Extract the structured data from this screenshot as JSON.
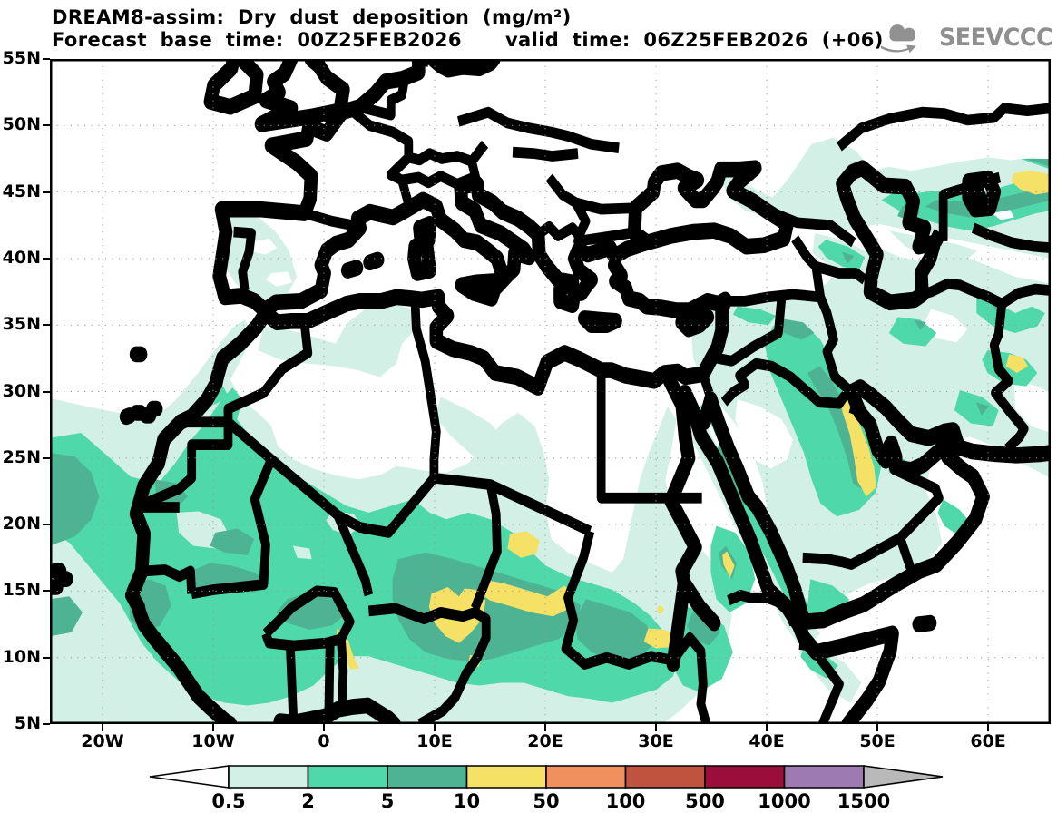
{
  "header": {
    "title": "DREAM8-assim: Dry dust deposition (mg/m²)",
    "forecast_base": "Forecast base time: 00Z25FEB2026",
    "valid_time": "valid time: 06Z25FEB2026 (+06)"
  },
  "logo": {
    "text": "SEEVCCC",
    "color": "#8f8f8f"
  },
  "map": {
    "lat_ticks": [
      {
        "label": "55N",
        "value": 55
      },
      {
        "label": "50N",
        "value": 50
      },
      {
        "label": "45N",
        "value": 45
      },
      {
        "label": "40N",
        "value": 40
      },
      {
        "label": "35N",
        "value": 35
      },
      {
        "label": "30N",
        "value": 30
      },
      {
        "label": "25N",
        "value": 25
      },
      {
        "label": "20N",
        "value": 20
      },
      {
        "label": "15N",
        "value": 15
      },
      {
        "label": "10N",
        "value": 10
      },
      {
        "label": "5N",
        "value": 5
      }
    ],
    "lon_ticks": [
      {
        "label": "20W",
        "value": -20
      },
      {
        "label": "10W",
        "value": -10
      },
      {
        "label": "0",
        "value": 0
      },
      {
        "label": "10E",
        "value": 10
      },
      {
        "label": "20E",
        "value": 20
      },
      {
        "label": "30E",
        "value": 30
      },
      {
        "label": "40E",
        "value": 40
      },
      {
        "label": "50E",
        "value": 50
      },
      {
        "label": "60E",
        "value": 60
      }
    ],
    "extent": {
      "lon_min": -24.75,
      "lon_max": 65.65,
      "lat_min": 5,
      "lat_max": 55
    },
    "grid": {
      "lat_interval": 5,
      "lon_interval": 10,
      "style": "dotted",
      "color": "#999999"
    }
  },
  "colorbar": {
    "values": [
      "0.5",
      "2",
      "5",
      "10",
      "50",
      "100",
      "500",
      "1000",
      "1500"
    ],
    "colors": [
      "#d3f0e7",
      "#4fd8a9",
      "#4db392",
      "#f4e165",
      "#f0905e",
      "#bf5340",
      "#9b0e3c",
      "#9d7bb2"
    ],
    "below_color": "#ffffff",
    "above_color": "#b9b9b9",
    "outline_color": "#000000"
  }
}
